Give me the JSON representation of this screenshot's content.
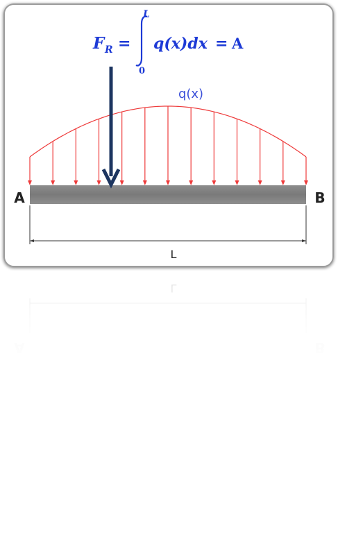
{
  "formula": {
    "f_letter": "F",
    "subscript": "R",
    "equals": "=",
    "integral_upper": "L",
    "integral_lower": "0",
    "integrand": "q(x)dx",
    "equals2": "=",
    "result": "A"
  },
  "load_label": "q(x)",
  "support_left_label": "A",
  "support_right_label": "B",
  "length_label": "L",
  "colors": {
    "load": "#ee3b3b",
    "load_label": "#3b50d9",
    "formula": "#1d3ad6",
    "resultant_arrow": "#1c3560",
    "beam": "#808080",
    "frame_border": "#9a9a9a",
    "text": "#222222"
  }
}
